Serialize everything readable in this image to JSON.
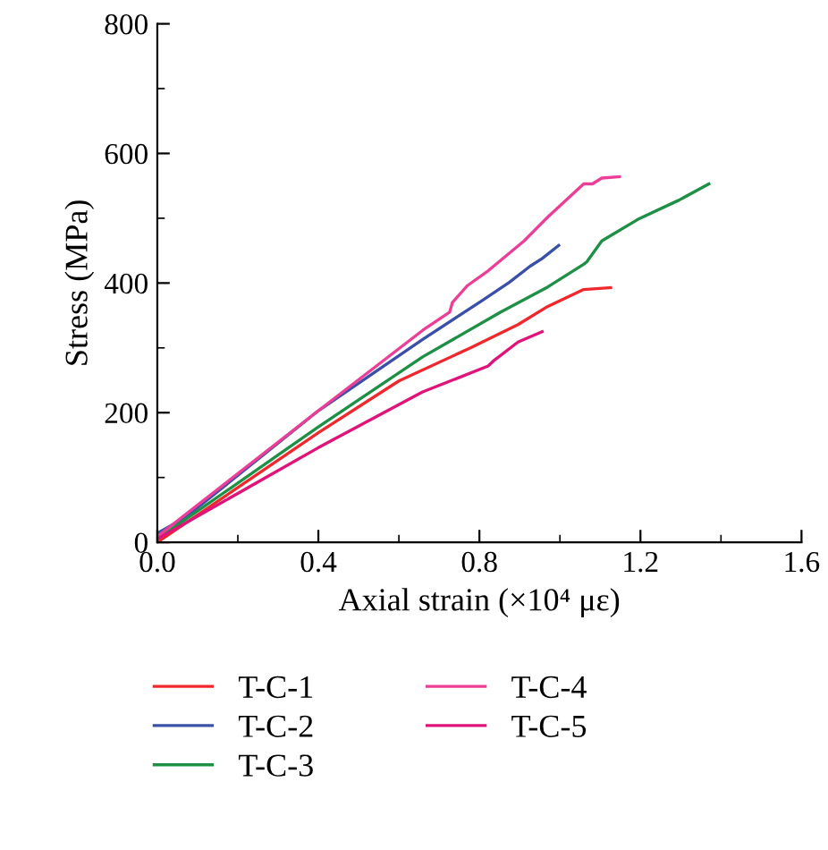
{
  "chart_data": {
    "type": "line",
    "xlabel": "Axial strain (×10⁴ με)",
    "ylabel": "Stress (MPa)",
    "xlim": [
      0,
      1.6
    ],
    "xticks": [
      {
        "value": 0,
        "label": "0.0"
      },
      0.4,
      0.8,
      1.2,
      1.6
    ],
    "ylim": [
      0,
      800
    ],
    "yticks": [
      0,
      200,
      400,
      600,
      800
    ],
    "grid": false,
    "legend": "bottom",
    "marker": "none",
    "line_style": "solid",
    "series": [
      {
        "name": "T-C-1",
        "color": "#f0282d",
        "x": [
          0,
          0.4,
          0.6,
          0.778,
          0.896,
          0.97,
          1.059,
          1.126
        ],
        "values": [
          0,
          169,
          249,
          300,
          336,
          364,
          390,
          393
        ]
      },
      {
        "name": "T-C-2",
        "color": "#3a4fa8",
        "x": [
          0,
          0.067,
          0.4,
          0.659,
          0.807,
          0.874,
          0.926,
          0.956,
          0.997
        ],
        "values": [
          14,
          37,
          203,
          313,
          373,
          401,
          426,
          438,
          458
        ]
      },
      {
        "name": "T-C-3",
        "color": "#1e9045",
        "x": [
          0,
          0.4,
          0.659,
          0.852,
          0.97,
          1.059,
          1.067,
          1.104,
          1.193,
          1.296,
          1.37
        ],
        "values": [
          5,
          178,
          286,
          355,
          394,
          429,
          433,
          465,
          498,
          528,
          553
        ]
      },
      {
        "name": "T-C-4",
        "color": "#ec3e96",
        "x": [
          0,
          0.4,
          0.659,
          0.726,
          0.733,
          0.77,
          0.822,
          0.911,
          0.97,
          1.059,
          1.081,
          1.104,
          1.148
        ],
        "values": [
          9,
          203,
          327,
          355,
          370,
          396,
          419,
          465,
          502,
          553,
          553,
          562,
          564
        ]
      },
      {
        "name": "T-C-5",
        "color": "#e0137a",
        "x": [
          0,
          0.4,
          0.659,
          0.822,
          0.837,
          0.896,
          0.956
        ],
        "values": [
          5,
          146,
          232,
          272,
          281,
          309,
          325
        ]
      }
    ]
  }
}
